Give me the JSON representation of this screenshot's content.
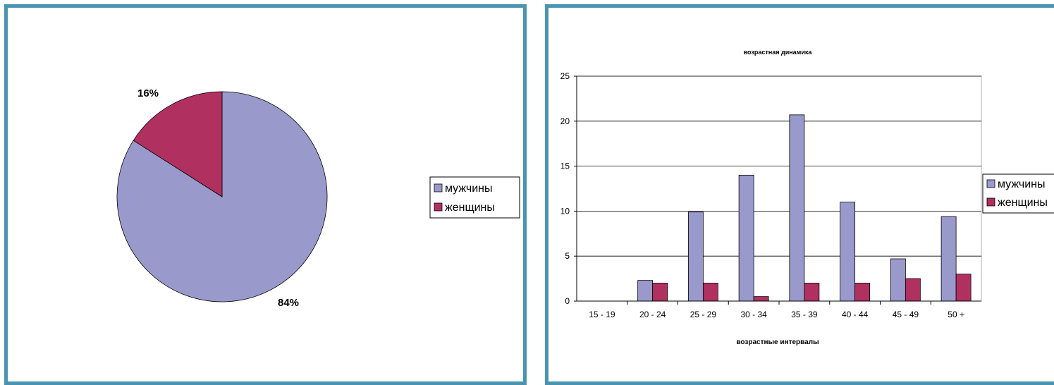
{
  "colors": {
    "border": "#4a94b2",
    "men": "#9999cc",
    "women": "#b03060"
  },
  "legend": [
    "мужчины",
    "женщины"
  ],
  "chart_data": [
    {
      "type": "pie",
      "title": "",
      "labels": [
        "мужчины",
        "женщины"
      ],
      "values": [
        84,
        16
      ],
      "data_labels": [
        "84%",
        "16%"
      ],
      "legend": "right"
    },
    {
      "type": "bar",
      "title": "возрастная динамика",
      "xlabel": "возрастные интервалы",
      "ylabel": "",
      "categories": [
        "15 - 19",
        "20 - 24",
        "25 - 29",
        "30 - 34",
        "35 - 39",
        "40 - 44",
        "45 - 49",
        "50 +"
      ],
      "series": [
        {
          "name": "мужчины",
          "values": [
            0,
            2.3,
            9.9,
            14.0,
            20.7,
            11.0,
            4.7,
            9.4
          ]
        },
        {
          "name": "женщины",
          "values": [
            0,
            2.0,
            2.0,
            0.5,
            2.0,
            2.0,
            2.5,
            3.0
          ]
        }
      ],
      "ylim": [
        0,
        25
      ],
      "yticks": [
        0,
        5,
        10,
        15,
        20,
        25
      ],
      "grid": "horizontal",
      "legend": "right"
    }
  ]
}
